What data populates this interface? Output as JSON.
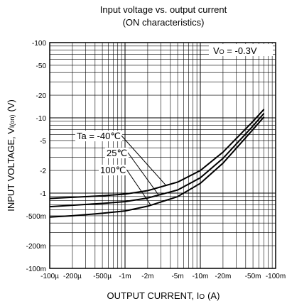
{
  "chart_data": {
    "type": "line",
    "title_line1": "Input voltage vs. output current",
    "title_line2": "(ON characteristics)",
    "xlabel": "OUTPUT CURRENT, I",
    "xlabel_sub": "O",
    "xlabel_unit": "(A)",
    "ylabel": "INPUT VOLTAGE, V",
    "ylabel_sub": "I(on)",
    "ylabel_unit": "(V)",
    "x_scale": "log",
    "y_scale": "log",
    "xlim": [
      -0.0001,
      -0.1
    ],
    "ylim": [
      -0.1,
      -100
    ],
    "x_ticks": [
      {
        "value": -0.0001,
        "label": "-100µ"
      },
      {
        "value": -0.0002,
        "label": "-200µ"
      },
      {
        "value": -0.0005,
        "label": "-500µ"
      },
      {
        "value": -0.001,
        "label": "-1m"
      },
      {
        "value": -0.002,
        "label": "-2m"
      },
      {
        "value": -0.005,
        "label": "-5m"
      },
      {
        "value": -0.01,
        "label": "-10m"
      },
      {
        "value": -0.02,
        "label": "-20m"
      },
      {
        "value": -0.05,
        "label": "-50m"
      },
      {
        "value": -0.1,
        "label": "-100m"
      }
    ],
    "y_ticks": [
      {
        "value": -0.1,
        "label": "-100m"
      },
      {
        "value": -0.2,
        "label": "-200m"
      },
      {
        "value": -0.5,
        "label": "-500m"
      },
      {
        "value": -1,
        "label": "-1"
      },
      {
        "value": -2,
        "label": "-2"
      },
      {
        "value": -5,
        "label": "-5"
      },
      {
        "value": -10,
        "label": "-10"
      },
      {
        "value": -20,
        "label": "-20"
      },
      {
        "value": -50,
        "label": "-50"
      },
      {
        "value": -100,
        "label": "-100"
      }
    ],
    "grid": true,
    "condition_label": "V",
    "condition_sub": "O",
    "condition_value": " = -0.3V",
    "series": [
      {
        "name": "Ta = -40℃",
        "x": [
          -0.0001,
          -0.0002,
          -0.0005,
          -0.001,
          -0.002,
          -0.005,
          -0.01,
          -0.02,
          -0.05,
          -0.07
        ],
        "y": [
          -0.85,
          -0.88,
          -0.92,
          -0.97,
          -1.08,
          -1.4,
          -2.0,
          -3.5,
          -9.0,
          -13.0
        ]
      },
      {
        "name": "25℃",
        "x": [
          -0.0001,
          -0.0002,
          -0.0005,
          -0.001,
          -0.002,
          -0.005,
          -0.01,
          -0.02,
          -0.05,
          -0.07
        ],
        "y": [
          -0.66,
          -0.69,
          -0.73,
          -0.77,
          -0.86,
          -1.1,
          -1.6,
          -2.9,
          -7.8,
          -11.5
        ]
      },
      {
        "name": "100℃",
        "x": [
          -0.0001,
          -0.0002,
          -0.0005,
          -0.001,
          -0.002,
          -0.005,
          -0.01,
          -0.02,
          -0.05,
          -0.07
        ],
        "y": [
          -0.48,
          -0.5,
          -0.54,
          -0.58,
          -0.67,
          -0.9,
          -1.35,
          -2.5,
          -7.0,
          -10.3
        ]
      }
    ]
  }
}
